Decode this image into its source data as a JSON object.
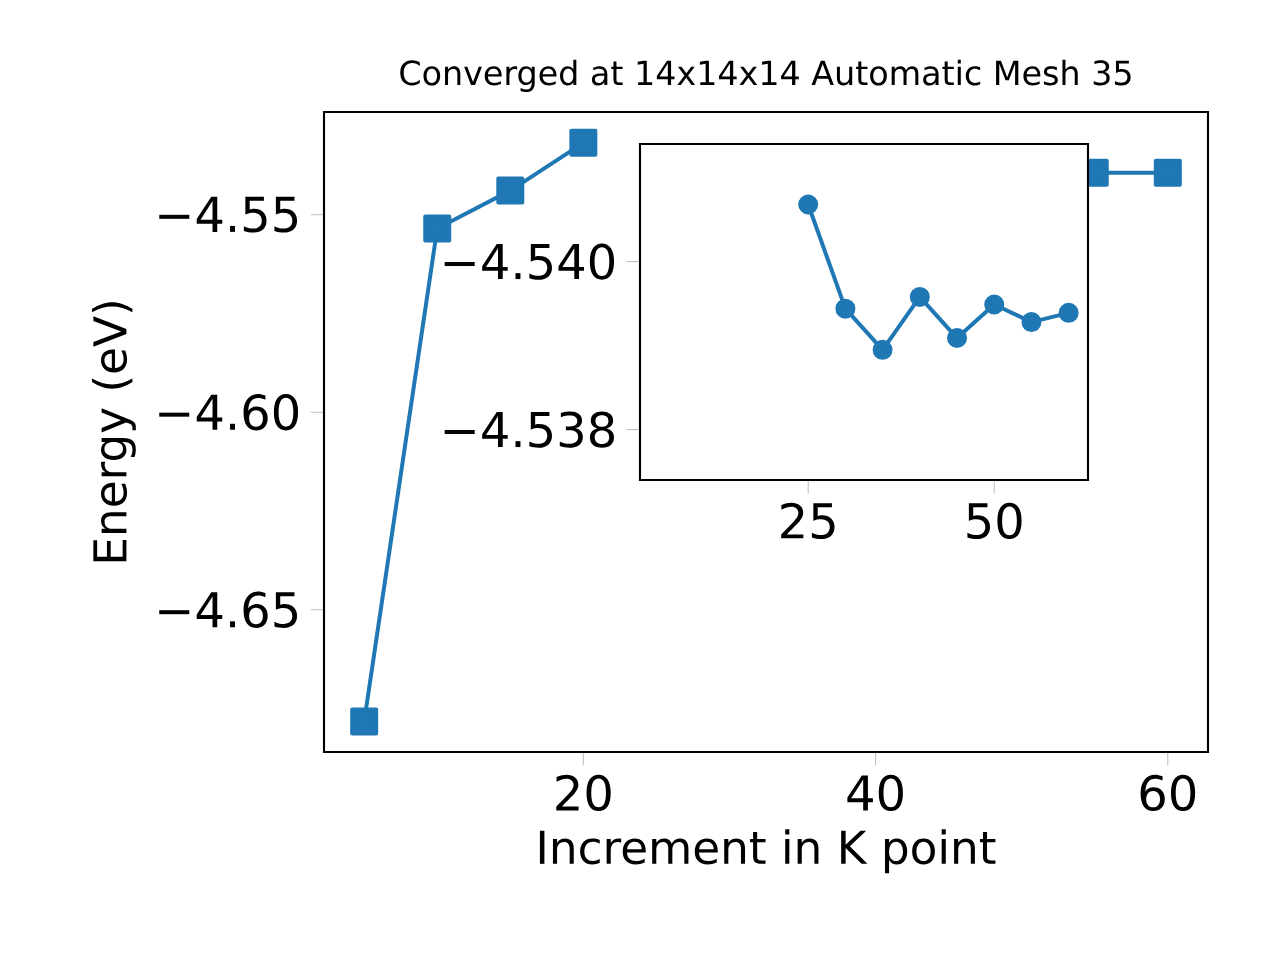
{
  "chart_data": [
    {
      "type": "line",
      "title": "Converged at 14x14x14 Automatic Mesh 35",
      "xlabel": "Increment in K point",
      "ylabel": "Energy (eV)",
      "marker": "square",
      "color": "#1f77b4",
      "x": [
        5,
        10,
        15,
        20,
        25,
        30,
        35,
        40,
        45,
        50,
        55,
        60
      ],
      "values": [
        -4.6783,
        -4.5535,
        -4.5439,
        -4.5318,
        null,
        null,
        null,
        null,
        null,
        null,
        -4.5394,
        -4.5394
      ],
      "xlim": [
        2.25,
        62.75
      ],
      "ylim": [
        -4.686,
        -4.524
      ],
      "xticks": [
        20,
        40,
        60
      ],
      "yticks": [
        {
          "value": -4.55,
          "label": "−4.55"
        },
        {
          "value": -4.6,
          "label": "−4.60"
        },
        {
          "value": -4.65,
          "label": "−4.65"
        }
      ]
    },
    {
      "type": "line",
      "marker": "circle",
      "color": "#1f77b4",
      "x": [
        25,
        30,
        35,
        40,
        45,
        50,
        55,
        60
      ],
      "values": [
        -4.54068,
        -4.53944,
        -4.53895,
        -4.53958,
        -4.53909,
        -4.53949,
        -4.53928,
        -4.53939
      ],
      "xlim": [
        2.4,
        62.6
      ],
      "ylim": [
        -4.5374,
        -4.5414
      ],
      "xticks": [
        25,
        50
      ],
      "yticks": [
        {
          "value": -4.54,
          "label": "−4.540"
        },
        {
          "value": -4.538,
          "label": "−4.538"
        }
      ]
    }
  ]
}
